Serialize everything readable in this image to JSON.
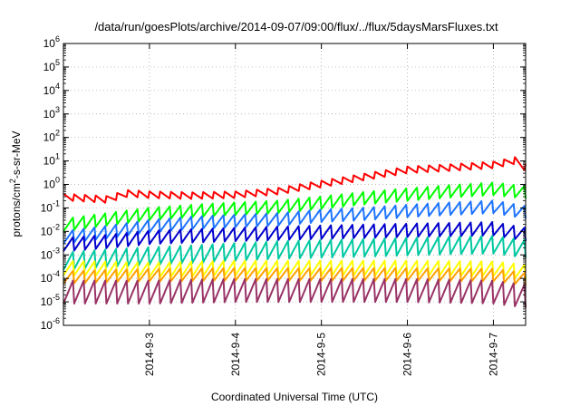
{
  "chart_data": {
    "type": "line",
    "title": "/data/run/goesPlots/archive/2014-09-07/09:00/flux/../flux/5daysMarsFluxes.txt",
    "xlabel": "Coordinated Universal Time (UTC)",
    "ylabel": {
      "prefix": "protons/cm",
      "sup": "2",
      "suffix": "-s-sr-MeV"
    },
    "yscale": "log",
    "ylim_exponents": [
      -6,
      6
    ],
    "ytick_labels": [
      {
        "base": "10",
        "exp": "6",
        "e": 6
      },
      {
        "base": "10",
        "exp": "5",
        "e": 5
      },
      {
        "base": "10",
        "exp": "4",
        "e": 4
      },
      {
        "base": "10",
        "exp": "3",
        "e": 3
      },
      {
        "base": "10",
        "exp": "2",
        "e": 2
      },
      {
        "base": "10",
        "exp": "1",
        "e": 1
      },
      {
        "base": "10",
        "exp": "0",
        "e": 0
      },
      {
        "base": "10",
        "exp": "-1",
        "e": -1
      },
      {
        "base": "10",
        "exp": "-2",
        "e": -2
      },
      {
        "base": "10",
        "exp": "-3",
        "e": -3
      },
      {
        "base": "10",
        "exp": "-4",
        "e": -4
      },
      {
        "base": "10",
        "exp": "-5",
        "e": -5
      },
      {
        "base": "10",
        "exp": "-6",
        "e": -6
      }
    ],
    "x_start": "2014-09-02T00:00",
    "x_end": "2014-09-07T09:00",
    "xtick_labels": [
      {
        "label": "2014-9-3",
        "date": "2014-09-03T00:00"
      },
      {
        "label": "2014-9-4",
        "date": "2014-09-04T00:00"
      },
      {
        "label": "2014-9-5",
        "date": "2014-09-05T00:00"
      },
      {
        "label": "2014-9-6",
        "date": "2014-09-06T00:00"
      },
      {
        "label": "2014-9-7",
        "date": "2014-09-07T00:00"
      }
    ],
    "grid": true,
    "series": [
      {
        "color": "#ff0000",
        "amp": 0.16,
        "points": [
          [
            "2014-09-02T00:00",
            0.28
          ],
          [
            "2014-09-02T12:00",
            0.22
          ],
          [
            "2014-09-02T18:00",
            0.4
          ],
          [
            "2014-09-03T00:00",
            0.35
          ],
          [
            "2014-09-03T12:00",
            0.32
          ],
          [
            "2014-09-04T00:00",
            0.35
          ],
          [
            "2014-09-04T12:00",
            0.5
          ],
          [
            "2014-09-05T00:00",
            1.0
          ],
          [
            "2014-09-05T12:00",
            2.0
          ],
          [
            "2014-09-06T00:00",
            4.0
          ],
          [
            "2014-09-06T12:00",
            5.0
          ],
          [
            "2014-09-07T00:00",
            6.5
          ],
          [
            "2014-09-07T06:00",
            10.0
          ],
          [
            "2014-09-07T09:00",
            5.0
          ]
        ]
      },
      {
        "color": "#00ff00",
        "amp": 0.3,
        "points": [
          [
            "2014-09-02T00:00",
            0.02
          ],
          [
            "2014-09-02T12:00",
            0.035
          ],
          [
            "2014-09-03T00:00",
            0.06
          ],
          [
            "2014-09-03T12:00",
            0.08
          ],
          [
            "2014-09-04T00:00",
            0.1
          ],
          [
            "2014-09-04T12:00",
            0.12
          ],
          [
            "2014-09-05T00:00",
            0.18
          ],
          [
            "2014-09-05T12:00",
            0.28
          ],
          [
            "2014-09-06T00:00",
            0.4
          ],
          [
            "2014-09-06T12:00",
            0.55
          ],
          [
            "2014-09-07T00:00",
            0.7
          ],
          [
            "2014-09-07T09:00",
            0.5
          ]
        ]
      },
      {
        "color": "#1e74ff",
        "amp": 0.3,
        "points": [
          [
            "2014-09-02T00:00",
            0.006
          ],
          [
            "2014-09-02T12:00",
            0.01
          ],
          [
            "2014-09-03T00:00",
            0.018
          ],
          [
            "2014-09-03T12:00",
            0.025
          ],
          [
            "2014-09-04T00:00",
            0.03
          ],
          [
            "2014-09-04T12:00",
            0.035
          ],
          [
            "2014-09-05T00:00",
            0.05
          ],
          [
            "2014-09-05T12:00",
            0.06
          ],
          [
            "2014-09-06T00:00",
            0.08
          ],
          [
            "2014-09-06T12:00",
            0.1
          ],
          [
            "2014-09-07T00:00",
            0.12
          ],
          [
            "2014-09-07T09:00",
            0.07
          ]
        ]
      },
      {
        "color": "#0000cc",
        "amp": 0.32,
        "points": [
          [
            "2014-09-02T00:00",
            0.003
          ],
          [
            "2014-09-02T12:00",
            0.004
          ],
          [
            "2014-09-03T00:00",
            0.006
          ],
          [
            "2014-09-03T12:00",
            0.007
          ],
          [
            "2014-09-04T00:00",
            0.008
          ],
          [
            "2014-09-04T12:00",
            0.009
          ],
          [
            "2014-09-05T00:00",
            0.01
          ],
          [
            "2014-09-05T12:00",
            0.011
          ],
          [
            "2014-09-06T00:00",
            0.012
          ],
          [
            "2014-09-06T12:00",
            0.013
          ],
          [
            "2014-09-07T00:00",
            0.014
          ],
          [
            "2014-09-07T09:00",
            0.008
          ]
        ]
      },
      {
        "color": "#00c8a0",
        "amp": 0.42,
        "points": [
          [
            "2014-09-02T00:00",
            0.0006
          ],
          [
            "2014-09-02T12:00",
            0.0008
          ],
          [
            "2014-09-03T00:00",
            0.001
          ],
          [
            "2014-09-03T12:00",
            0.0012
          ],
          [
            "2014-09-04T00:00",
            0.0015
          ],
          [
            "2014-09-04T12:00",
            0.0018
          ],
          [
            "2014-09-05T00:00",
            0.002
          ],
          [
            "2014-09-05T12:00",
            0.0022
          ],
          [
            "2014-09-06T00:00",
            0.0025
          ],
          [
            "2014-09-06T12:00",
            0.0028
          ],
          [
            "2014-09-07T00:00",
            0.003
          ],
          [
            "2014-09-07T09:00",
            0.002
          ]
        ]
      },
      {
        "color": "#ffff00",
        "amp": 0.35,
        "points": [
          [
            "2014-09-02T00:00",
            0.0003
          ],
          [
            "2014-09-03T00:00",
            0.00025
          ],
          [
            "2014-09-04T00:00",
            0.0003
          ],
          [
            "2014-09-05T00:00",
            0.0003
          ],
          [
            "2014-09-06T00:00",
            0.0003
          ],
          [
            "2014-09-07T00:00",
            0.00028
          ],
          [
            "2014-09-07T09:00",
            0.0002
          ]
        ]
      },
      {
        "color": "#ffa000",
        "amp": 0.3,
        "points": [
          [
            "2014-09-02T00:00",
            0.00012
          ],
          [
            "2014-09-03T00:00",
            0.00015
          ],
          [
            "2014-09-04T00:00",
            0.00016
          ],
          [
            "2014-09-05T00:00",
            0.00016
          ],
          [
            "2014-09-06T00:00",
            0.00016
          ],
          [
            "2014-09-07T00:00",
            0.00015
          ],
          [
            "2014-09-07T09:00",
            0.0001
          ]
        ]
      },
      {
        "color": "#993366",
        "amp": 0.55,
        "points": [
          [
            "2014-09-02T00:00",
            3e-05
          ],
          [
            "2014-09-03T00:00",
            3e-05
          ],
          [
            "2014-09-04T00:00",
            3.5e-05
          ],
          [
            "2014-09-05T00:00",
            3.5e-05
          ],
          [
            "2014-09-06T00:00",
            3.5e-05
          ],
          [
            "2014-09-07T00:00",
            3e-05
          ],
          [
            "2014-09-07T09:00",
            2e-05
          ]
        ]
      }
    ]
  }
}
